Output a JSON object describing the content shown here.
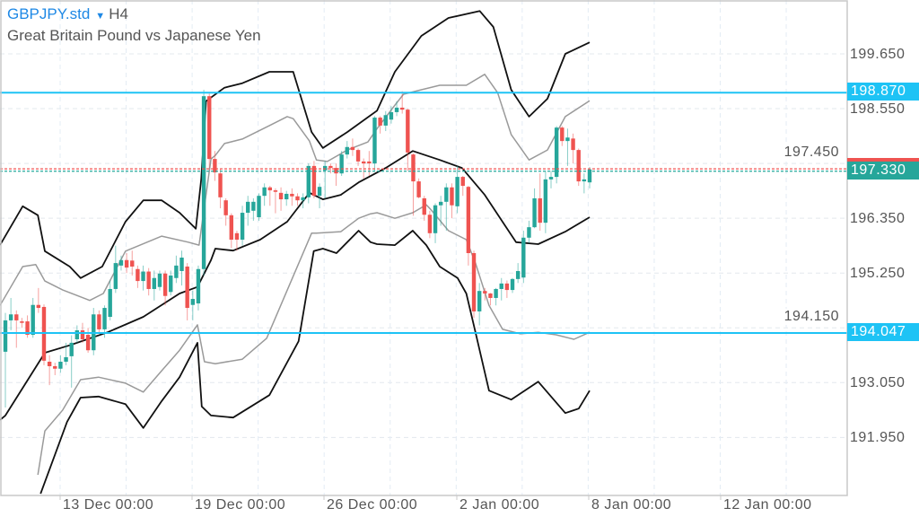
{
  "header": {
    "symbol": "GBPJPY.std",
    "timeframe": "H4",
    "description": "Great Britain Pound vs Japanese Yen"
  },
  "colors": {
    "up": "#26a69a",
    "down": "#ef5350",
    "level_line": "#1ec3f5",
    "band_outer": "#111111",
    "band_inner": "#9a9a9a"
  },
  "chart_data": {
    "type": "candlestick",
    "title": "GBPJPY.std H4",
    "price_axis": {
      "ticks": [
        "199.650",
        "198.550",
        "197.450",
        "196.350",
        "195.250",
        "194.150",
        "193.050",
        "191.950"
      ],
      "tick_values": [
        199.65,
        198.55,
        197.45,
        196.35,
        195.25,
        194.15,
        193.05,
        191.95
      ]
    },
    "time_axis": {
      "labels": [
        "13 Dec 00:00",
        "19 Dec 00:00",
        "26 Dec 00:00",
        "2 Jan 00:00",
        "8 Jan 00:00",
        "12 Jan 00:00"
      ]
    },
    "current_price": {
      "label": "197.330",
      "value": 197.33
    },
    "bid_price": {
      "value": 197.35
    },
    "levels": [
      {
        "label": "198.870",
        "value": 198.87
      },
      {
        "label": "194.047",
        "value": 194.047
      }
    ],
    "candles_ohlc": [
      [
        193.67,
        194.45,
        192.55,
        194.3
      ],
      [
        194.3,
        194.75,
        194.1,
        194.42
      ],
      [
        194.42,
        194.5,
        193.75,
        194.3
      ],
      [
        194.28,
        194.35,
        194.15,
        194.25
      ],
      [
        194.28,
        194.4,
        193.95,
        194.01
      ],
      [
        194.01,
        194.75,
        193.95,
        194.61
      ],
      [
        194.61,
        194.95,
        194.45,
        194.55
      ],
      [
        194.57,
        194.62,
        193.4,
        193.49
      ],
      [
        193.47,
        193.6,
        193.0,
        193.38
      ],
      [
        193.38,
        193.45,
        193.2,
        193.33
      ],
      [
        193.33,
        193.6,
        193.25,
        193.47
      ],
      [
        193.47,
        193.85,
        193.4,
        193.56
      ],
      [
        193.58,
        194.0,
        192.95,
        193.85
      ],
      [
        193.92,
        194.2,
        193.85,
        194.1
      ],
      [
        194.1,
        194.25,
        193.85,
        193.92
      ],
      [
        194.01,
        194.15,
        193.65,
        193.7
      ],
      [
        193.7,
        194.55,
        193.6,
        194.42
      ],
      [
        194.42,
        194.5,
        194.05,
        194.12
      ],
      [
        194.12,
        194.6,
        193.95,
        194.55
      ],
      [
        194.37,
        195.1,
        194.3,
        194.93
      ],
      [
        194.93,
        195.8,
        194.85,
        195.45
      ],
      [
        195.4,
        195.6,
        195.3,
        195.51
      ],
      [
        195.51,
        195.65,
        195.25,
        195.36
      ],
      [
        195.5,
        195.7,
        195.2,
        195.38
      ],
      [
        195.33,
        195.4,
        194.95,
        195.09
      ],
      [
        195.09,
        195.4,
        194.9,
        195.28
      ],
      [
        195.28,
        195.35,
        194.8,
        194.93
      ],
      [
        194.93,
        195.3,
        194.7,
        195.15
      ],
      [
        194.97,
        195.3,
        194.9,
        195.24
      ],
      [
        195.24,
        195.3,
        194.6,
        194.79
      ],
      [
        194.87,
        195.3,
        194.8,
        195.2
      ],
      [
        195.15,
        195.6,
        195.05,
        195.4
      ],
      [
        195.29,
        195.7,
        195.0,
        195.56
      ],
      [
        195.38,
        195.45,
        194.3,
        194.55
      ],
      [
        194.61,
        194.9,
        194.3,
        194.73
      ],
      [
        194.64,
        195.4,
        194.5,
        195.33
      ],
      [
        195.33,
        198.93,
        195.2,
        198.8
      ],
      [
        198.8,
        198.85,
        197.35,
        197.54
      ],
      [
        197.54,
        197.7,
        197.1,
        197.27
      ],
      [
        197.25,
        197.35,
        196.55,
        196.77
      ],
      [
        196.71,
        196.75,
        196.2,
        196.41
      ],
      [
        196.41,
        196.45,
        195.75,
        195.92
      ],
      [
        196.05,
        196.1,
        195.7,
        195.92
      ],
      [
        195.92,
        196.6,
        195.8,
        196.46
      ],
      [
        196.46,
        196.8,
        196.2,
        196.68
      ],
      [
        196.5,
        196.75,
        196.3,
        196.68
      ],
      [
        196.37,
        196.85,
        196.3,
        196.8
      ],
      [
        196.8,
        197.05,
        196.6,
        196.97
      ],
      [
        196.97,
        197.0,
        196.6,
        196.91
      ],
      [
        196.91,
        196.95,
        196.45,
        196.88
      ],
      [
        196.86,
        196.97,
        196.5,
        196.73
      ],
      [
        196.73,
        196.9,
        196.6,
        196.84
      ],
      [
        196.84,
        196.95,
        196.6,
        196.79
      ],
      [
        196.79,
        196.85,
        196.6,
        196.71
      ],
      [
        196.71,
        196.85,
        196.55,
        196.77
      ],
      [
        196.77,
        197.45,
        196.65,
        197.4
      ],
      [
        197.4,
        197.5,
        196.75,
        196.8
      ],
      [
        196.8,
        197.05,
        196.55,
        196.98
      ],
      [
        197.31,
        197.5,
        196.75,
        197.4
      ],
      [
        197.4,
        197.45,
        197.25,
        197.36
      ],
      [
        197.36,
        197.45,
        197.0,
        197.25
      ],
      [
        197.25,
        197.7,
        197.2,
        197.63
      ],
      [
        197.63,
        197.9,
        197.55,
        197.78
      ],
      [
        197.78,
        197.95,
        197.6,
        197.72
      ],
      [
        197.72,
        197.75,
        197.4,
        197.49
      ],
      [
        197.49,
        197.55,
        197.15,
        197.45
      ],
      [
        197.49,
        197.7,
        197.2,
        197.45
      ],
      [
        197.45,
        198.4,
        197.3,
        198.37
      ],
      [
        198.37,
        198.4,
        198.05,
        198.21
      ],
      [
        198.21,
        198.5,
        198.1,
        198.42
      ],
      [
        198.33,
        198.6,
        198.25,
        198.48
      ],
      [
        198.48,
        198.7,
        198.4,
        198.57
      ],
      [
        198.57,
        198.9,
        198.45,
        198.53
      ],
      [
        198.53,
        198.55,
        197.3,
        197.67
      ],
      [
        197.63,
        197.65,
        196.4,
        197.09
      ],
      [
        197.09,
        197.15,
        196.75,
        196.77
      ],
      [
        196.75,
        196.8,
        196.3,
        196.42
      ],
      [
        196.42,
        196.5,
        195.95,
        196.05
      ],
      [
        196.05,
        196.65,
        195.85,
        196.61
      ],
      [
        196.61,
        196.8,
        196.2,
        196.68
      ],
      [
        196.68,
        197.05,
        196.1,
        196.97
      ],
      [
        196.97,
        197.05,
        196.35,
        196.61
      ],
      [
        196.59,
        197.4,
        196.45,
        197.18
      ],
      [
        197.18,
        197.2,
        196.8,
        197.0
      ],
      [
        196.98,
        197.0,
        195.4,
        195.65
      ],
      [
        195.65,
        195.7,
        194.35,
        194.48
      ],
      [
        194.48,
        195.05,
        194.2,
        194.89
      ],
      [
        194.89,
        194.95,
        194.7,
        194.84
      ],
      [
        194.84,
        194.85,
        194.6,
        194.75
      ],
      [
        194.75,
        194.95,
        194.6,
        194.93
      ],
      [
        194.93,
        195.15,
        194.7,
        195.04
      ],
      [
        195.04,
        195.1,
        194.75,
        194.91
      ],
      [
        194.91,
        195.15,
        194.85,
        195.13
      ],
      [
        195.13,
        195.45,
        195.05,
        195.29
      ],
      [
        195.16,
        196.1,
        195.05,
        195.96
      ],
      [
        195.96,
        196.3,
        195.85,
        196.17
      ],
      [
        196.17,
        196.95,
        196.15,
        196.75
      ],
      [
        196.75,
        197.25,
        196.1,
        196.26
      ],
      [
        196.26,
        197.3,
        196.05,
        197.13
      ],
      [
        197.13,
        197.3,
        196.95,
        197.18
      ],
      [
        197.18,
        198.2,
        197.05,
        198.17
      ],
      [
        198.17,
        198.2,
        197.8,
        197.9
      ],
      [
        197.9,
        198.15,
        197.4,
        197.97
      ],
      [
        197.95,
        198.05,
        197.45,
        197.72
      ],
      [
        197.72,
        197.75,
        197.0,
        197.09
      ],
      [
        197.09,
        197.25,
        196.85,
        197.13
      ],
      [
        197.07,
        197.38,
        196.95,
        197.33
      ]
    ],
    "bands": {
      "upper_outer": [
        [
          -1,
          195.81
        ],
        [
          3.2,
          196.59
        ],
        [
          6,
          196.41
        ],
        [
          7.3,
          195.69
        ],
        [
          11.9,
          195.38
        ],
        [
          13.9,
          195.15
        ],
        [
          17.9,
          195.38
        ],
        [
          22.2,
          196.28
        ],
        [
          25.5,
          196.71
        ],
        [
          28.9,
          196.71
        ],
        [
          32.2,
          196.46
        ],
        [
          35.2,
          196.14
        ],
        [
          36.2,
          197.13
        ],
        [
          37.1,
          198.7
        ],
        [
          40.5,
          198.97
        ],
        [
          43.8,
          199.06
        ],
        [
          48.8,
          199.29
        ],
        [
          53.2,
          199.29
        ],
        [
          56.6,
          198.08
        ],
        [
          58.7,
          197.76
        ],
        [
          63.2,
          198.08
        ],
        [
          68.7,
          198.51
        ],
        [
          72,
          199.29
        ],
        [
          76.9,
          200.01
        ],
        [
          81.9,
          200.37
        ],
        [
          87.7,
          200.51
        ],
        [
          90.2,
          200.19
        ],
        [
          93.5,
          198.93
        ],
        [
          96.8,
          198.39
        ],
        [
          100.2,
          198.75
        ],
        [
          103.5,
          199.65
        ],
        [
          108,
          199.88
        ]
      ],
      "middle": [
        [
          -1,
          192.3
        ],
        [
          0,
          192.39
        ],
        [
          7.3,
          193.65
        ],
        [
          11.9,
          193.8
        ],
        [
          18.9,
          194.06
        ],
        [
          25.5,
          194.37
        ],
        [
          32.2,
          194.84
        ],
        [
          35.5,
          194.97
        ],
        [
          38,
          195.51
        ],
        [
          38.8,
          195.74
        ],
        [
          42.1,
          195.7
        ],
        [
          47.1,
          195.92
        ],
        [
          52.1,
          196.28
        ],
        [
          56.2,
          196.86
        ],
        [
          58.7,
          196.73
        ],
        [
          62,
          196.82
        ],
        [
          65.3,
          197.07
        ],
        [
          70.3,
          197.36
        ],
        [
          75.3,
          197.7
        ],
        [
          80.3,
          197.52
        ],
        [
          84.4,
          197.36
        ],
        [
          88.6,
          196.82
        ],
        [
          94.4,
          195.87
        ],
        [
          98.5,
          195.83
        ],
        [
          103.5,
          196.08
        ],
        [
          108,
          196.37
        ]
      ],
      "lower_outer": [
        [
          6.5,
          190.82
        ],
        [
          11.4,
          192.26
        ],
        [
          13.9,
          192.75
        ],
        [
          17.2,
          192.77
        ],
        [
          22.2,
          192.62
        ],
        [
          25.5,
          192.14
        ],
        [
          28.9,
          192.68
        ],
        [
          32.2,
          193.16
        ],
        [
          35.5,
          193.85
        ],
        [
          36.3,
          192.57
        ],
        [
          38,
          192.39
        ],
        [
          42.1,
          192.35
        ],
        [
          48.8,
          192.8
        ],
        [
          54.2,
          193.88
        ],
        [
          57,
          195.69
        ],
        [
          58.7,
          195.74
        ],
        [
          61.2,
          195.65
        ],
        [
          65.3,
          196.1
        ],
        [
          67.5,
          195.87
        ],
        [
          68.7,
          195.83
        ],
        [
          72,
          195.81
        ],
        [
          75.3,
          196.1
        ],
        [
          77.8,
          195.81
        ],
        [
          80.3,
          195.38
        ],
        [
          83.6,
          195.15
        ],
        [
          85.2,
          194.84
        ],
        [
          86.9,
          194.06
        ],
        [
          89.4,
          192.89
        ],
        [
          93.5,
          192.71
        ],
        [
          98.5,
          193.07
        ],
        [
          103.5,
          192.44
        ],
        [
          106,
          192.53
        ],
        [
          108,
          192.89
        ]
      ],
      "upper_inner": [
        [
          -1,
          194.6
        ],
        [
          3.2,
          195.38
        ],
        [
          5.6,
          195.42
        ],
        [
          7.3,
          195.09
        ],
        [
          10.6,
          194.91
        ],
        [
          15.6,
          194.7
        ],
        [
          18.1,
          194.84
        ],
        [
          22.2,
          195.69
        ],
        [
          28.9,
          195.99
        ],
        [
          33.8,
          195.87
        ],
        [
          35.8,
          195.81
        ],
        [
          38,
          197.54
        ],
        [
          38.8,
          197.61
        ],
        [
          40.5,
          197.85
        ],
        [
          43.8,
          197.94
        ],
        [
          48.8,
          198.21
        ],
        [
          52.1,
          198.39
        ],
        [
          53.2,
          198.35
        ],
        [
          56.2,
          197.9
        ],
        [
          57.5,
          197.52
        ],
        [
          59.5,
          197.49
        ],
        [
          63.2,
          197.72
        ],
        [
          67,
          197.88
        ],
        [
          68.7,
          198.15
        ],
        [
          72,
          198.62
        ],
        [
          73.6,
          198.84
        ],
        [
          76.9,
          198.93
        ],
        [
          80.3,
          199.02
        ],
        [
          85.2,
          199.02
        ],
        [
          88.6,
          199.24
        ],
        [
          91,
          198.87
        ],
        [
          93.5,
          198.03
        ],
        [
          96.8,
          197.52
        ],
        [
          100.2,
          197.72
        ],
        [
          103.5,
          198.39
        ],
        [
          108,
          198.71
        ]
      ],
      "lower_inner": [
        [
          6,
          191.2
        ],
        [
          7.3,
          192.08
        ],
        [
          10.6,
          192.5
        ],
        [
          13.9,
          193.11
        ],
        [
          17.2,
          193.16
        ],
        [
          22.2,
          193.04
        ],
        [
          25.5,
          192.86
        ],
        [
          28.9,
          193.29
        ],
        [
          32.2,
          193.7
        ],
        [
          35.5,
          194.21
        ],
        [
          36.8,
          193.47
        ],
        [
          38.8,
          193.43
        ],
        [
          43.8,
          193.52
        ],
        [
          48.3,
          193.94
        ],
        [
          56.6,
          196.05
        ],
        [
          57.5,
          196.05
        ],
        [
          62,
          196.08
        ],
        [
          65.3,
          196.35
        ],
        [
          67.5,
          196.44
        ],
        [
          68.7,
          196.46
        ],
        [
          72,
          196.35
        ],
        [
          75.3,
          196.46
        ],
        [
          77.8,
          196.62
        ],
        [
          78.6,
          196.53
        ],
        [
          81.9,
          196.1
        ],
        [
          85.2,
          195.92
        ],
        [
          86.9,
          195.45
        ],
        [
          89.4,
          194.6
        ],
        [
          91.9,
          194.12
        ],
        [
          95.2,
          194.03
        ],
        [
          98.5,
          194.06
        ],
        [
          101.8,
          194.01
        ],
        [
          105.1,
          193.92
        ],
        [
          108,
          194.06
        ]
      ]
    }
  }
}
